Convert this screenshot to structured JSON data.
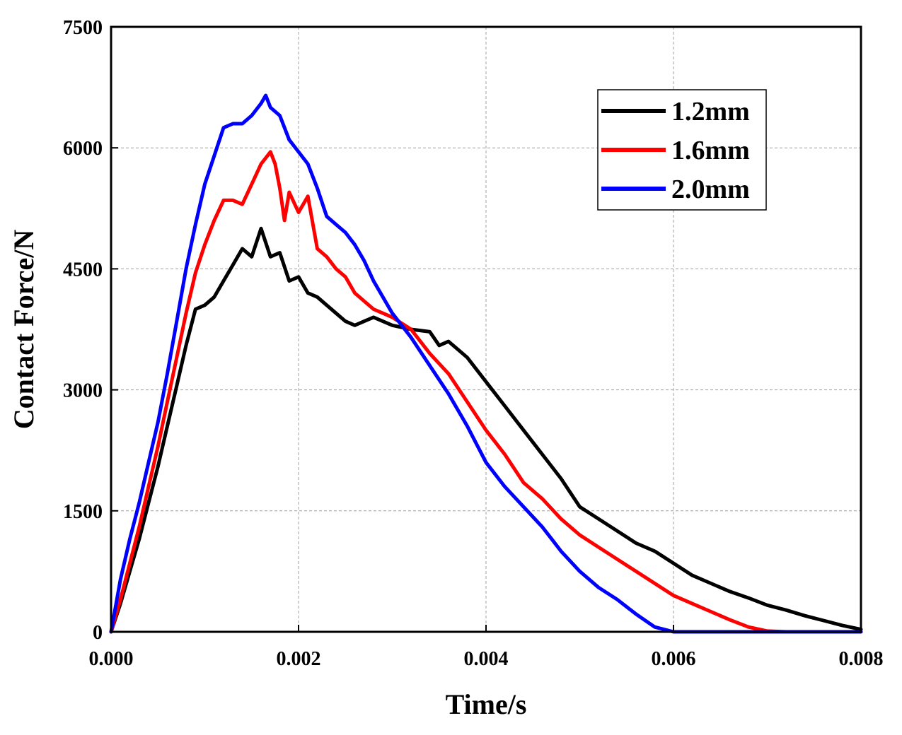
{
  "chart_data": {
    "type": "line",
    "title": "",
    "xlabel": "Time/s",
    "ylabel": "Contact Force/N",
    "xlim": [
      0,
      0.008
    ],
    "ylim": [
      0,
      7500
    ],
    "x_ticks": [
      "0.000",
      "0.002",
      "0.004",
      "0.006",
      "0.008"
    ],
    "x_tick_values": [
      0,
      0.002,
      0.004,
      0.006,
      0.008
    ],
    "y_ticks": [
      "0",
      "1500",
      "3000",
      "4500",
      "6000",
      "7500"
    ],
    "y_tick_values": [
      0,
      1500,
      3000,
      4500,
      6000,
      7500
    ],
    "grid": true,
    "legend_position": "top-right",
    "series": [
      {
        "name": "1.2mm",
        "color": "#000000",
        "x": [
          0,
          0.0001,
          0.0002,
          0.0003,
          0.0004,
          0.0005,
          0.0006,
          0.0007,
          0.0008,
          0.0009,
          0.001,
          0.0011,
          0.0012,
          0.0013,
          0.0014,
          0.0015,
          0.0016,
          0.0017,
          0.0018,
          0.0019,
          0.002,
          0.0021,
          0.0022,
          0.0023,
          0.0024,
          0.0025,
          0.0026,
          0.0027,
          0.0028,
          0.003,
          0.0032,
          0.0034,
          0.0035,
          0.0036,
          0.0038,
          0.004,
          0.0042,
          0.0044,
          0.0046,
          0.0048,
          0.005,
          0.0052,
          0.0054,
          0.0056,
          0.0058,
          0.006,
          0.0062,
          0.0064,
          0.0066,
          0.0068,
          0.007,
          0.0072,
          0.0074,
          0.0076,
          0.0078,
          0.008
        ],
        "y": [
          0,
          350,
          750,
          1150,
          1600,
          2050,
          2550,
          3050,
          3550,
          4000,
          4050,
          4150,
          4350,
          4550,
          4750,
          4650,
          5000,
          4650,
          4700,
          4350,
          4400,
          4200,
          4150,
          4050,
          3950,
          3850,
          3800,
          3850,
          3900,
          3800,
          3750,
          3720,
          3550,
          3600,
          3400,
          3100,
          2800,
          2500,
          2200,
          1900,
          1550,
          1400,
          1250,
          1100,
          1000,
          850,
          700,
          600,
          500,
          420,
          330,
          270,
          200,
          140,
          80,
          30
        ]
      },
      {
        "name": "1.6mm",
        "color": "#ff0000",
        "x": [
          0,
          0.0001,
          0.0002,
          0.0003,
          0.0004,
          0.0005,
          0.0006,
          0.0007,
          0.0008,
          0.0009,
          0.001,
          0.0011,
          0.0012,
          0.0013,
          0.0014,
          0.0015,
          0.0016,
          0.0017,
          0.00175,
          0.0018,
          0.00185,
          0.0019,
          0.002,
          0.0021,
          0.0022,
          0.0023,
          0.0024,
          0.0025,
          0.0026,
          0.0027,
          0.0028,
          0.0029,
          0.003,
          0.0032,
          0.0034,
          0.0036,
          0.0038,
          0.004,
          0.0042,
          0.0044,
          0.0046,
          0.0048,
          0.005,
          0.0052,
          0.0054,
          0.0056,
          0.0058,
          0.006,
          0.0062,
          0.0064,
          0.0066,
          0.0068,
          0.007,
          0.0072,
          0.0074,
          0.0076,
          0.0078,
          0.008
        ],
        "y": [
          0,
          400,
          850,
          1300,
          1800,
          2300,
          2850,
          3400,
          3950,
          4450,
          4800,
          5100,
          5350,
          5350,
          5300,
          5550,
          5800,
          5950,
          5800,
          5500,
          5100,
          5450,
          5200,
          5400,
          4750,
          4650,
          4500,
          4400,
          4200,
          4100,
          4000,
          3950,
          3900,
          3750,
          3450,
          3200,
          2850,
          2500,
          2200,
          1850,
          1650,
          1400,
          1200,
          1050,
          900,
          750,
          600,
          450,
          350,
          250,
          150,
          60,
          10,
          0,
          0,
          0,
          0,
          0
        ]
      },
      {
        "name": "2.0mm",
        "color": "#0000ff",
        "x": [
          0,
          0.0001,
          0.0002,
          0.0003,
          0.0004,
          0.0005,
          0.0006,
          0.0007,
          0.0008,
          0.0009,
          0.001,
          0.0011,
          0.0012,
          0.0013,
          0.0014,
          0.0015,
          0.0016,
          0.00165,
          0.0017,
          0.0018,
          0.0019,
          0.002,
          0.0021,
          0.0022,
          0.0023,
          0.0024,
          0.0025,
          0.0026,
          0.0027,
          0.0028,
          0.003,
          0.0032,
          0.0034,
          0.0036,
          0.0038,
          0.004,
          0.0042,
          0.0044,
          0.0046,
          0.0047,
          0.0048,
          0.005,
          0.0052,
          0.0054,
          0.0056,
          0.0058,
          0.006,
          0.0062,
          0.0064,
          0.0066,
          0.0068,
          0.007,
          0.0072,
          0.0074,
          0.0076,
          0.0078,
          0.008
        ],
        "y": [
          0,
          650,
          1150,
          1600,
          2100,
          2600,
          3200,
          3850,
          4500,
          5050,
          5550,
          5900,
          6250,
          6300,
          6300,
          6400,
          6550,
          6650,
          6500,
          6400,
          6100,
          5950,
          5800,
          5500,
          5150,
          5050,
          4950,
          4800,
          4600,
          4350,
          3950,
          3650,
          3300,
          2950,
          2550,
          2100,
          1800,
          1550,
          1300,
          1150,
          1000,
          750,
          550,
          400,
          220,
          60,
          0,
          0,
          0,
          0,
          0,
          0,
          0,
          0,
          0,
          0,
          0
        ]
      }
    ]
  }
}
